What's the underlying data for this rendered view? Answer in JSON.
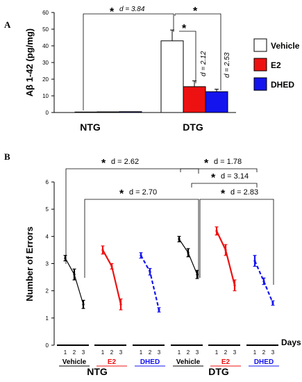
{
  "colors": {
    "vehicle": "#000000",
    "e2": "#ee1111",
    "dhed": "#1414ee",
    "vehicle_fill": "#ffffff"
  },
  "chart_data": [
    {
      "panel": "A",
      "type": "bar",
      "ylabel": "Aβ 1-42 (pg/mg)",
      "ylim": [
        0,
        60
      ],
      "yticks": [
        "0",
        "10",
        "20",
        "30",
        "40",
        "50",
        "60"
      ],
      "groups": [
        "NTG",
        "DTG"
      ],
      "series": [
        {
          "name": "Vehicle",
          "values": [
            0.3,
            43
          ],
          "errors": [
            0.2,
            6.5
          ]
        },
        {
          "name": "E2",
          "values": [
            0.4,
            15.5
          ],
          "errors": [
            0.2,
            3.5
          ]
        },
        {
          "name": "DHED",
          "values": [
            0.5,
            12.5
          ],
          "errors": [
            0.2,
            1.5
          ]
        }
      ],
      "annotations": [
        {
          "star": "*",
          "text": "d = 3.84"
        },
        {
          "star": "*",
          "text": ""
        },
        {
          "star": "*",
          "text": ""
        },
        {
          "star": "",
          "text": "d = 2.12"
        },
        {
          "star": "",
          "text": "d = 2.53"
        }
      ]
    },
    {
      "panel": "B",
      "type": "line",
      "ylabel": "Number of Errors",
      "ylim": [
        0,
        6
      ],
      "yticks": [
        "0",
        "1",
        "2",
        "3",
        "4",
        "5",
        "6"
      ],
      "xlabel": "Days",
      "days": [
        "1",
        "2",
        "3"
      ],
      "groups": [
        "NTG",
        "DTG"
      ],
      "conditions": [
        "Vehicle",
        "E2",
        "DHED",
        "Vehicle",
        "E2",
        "DHED"
      ],
      "series": [
        {
          "name": "NTG Vehicle",
          "values": [
            3.2,
            2.6,
            1.5
          ],
          "errors": [
            0.1,
            0.2,
            0.15
          ]
        },
        {
          "name": "NTG E2",
          "values": [
            3.5,
            2.9,
            1.5
          ],
          "errors": [
            0.15,
            0.1,
            0.2
          ]
        },
        {
          "name": "NTG DHED",
          "values": [
            3.3,
            2.7,
            1.3
          ],
          "errors": [
            0.1,
            0.12,
            0.08
          ]
        },
        {
          "name": "DTG Vehicle",
          "values": [
            3.9,
            3.4,
            2.6
          ],
          "errors": [
            0.1,
            0.15,
            0.15
          ]
        },
        {
          "name": "DTG E2",
          "values": [
            4.2,
            3.5,
            2.2
          ],
          "errors": [
            0.15,
            0.2,
            0.2
          ]
        },
        {
          "name": "DTG DHED",
          "values": [
            3.1,
            2.35,
            1.55
          ],
          "errors": [
            0.2,
            0.12,
            0.08
          ]
        }
      ],
      "annotations": [
        {
          "star": "*",
          "text": "d = 2.62"
        },
        {
          "star": "*",
          "text": "d = 1.78"
        },
        {
          "star": "*",
          "text": "d = 3.14"
        },
        {
          "star": "*",
          "text": "d = 2.70"
        },
        {
          "star": "*",
          "text": "d = 2.83"
        }
      ]
    }
  ]
}
